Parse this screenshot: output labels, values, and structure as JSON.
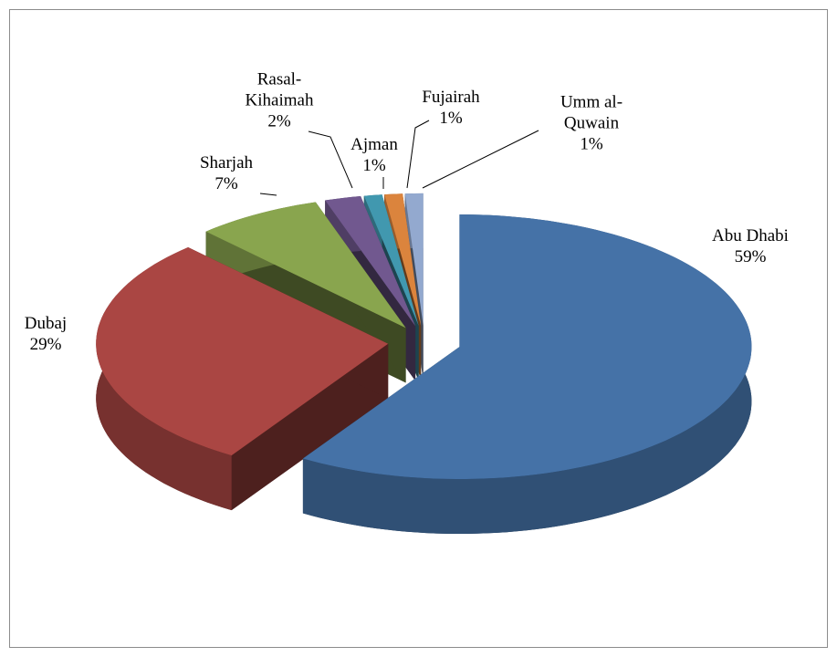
{
  "chart_data": {
    "type": "pie",
    "categories": [
      "Abu Dhabi",
      "Dubaj",
      "Sharjah",
      "Rasal-Kihaimah",
      "Ajman",
      "Fujairah",
      "Umm al-Quwain"
    ],
    "values": [
      59,
      29,
      7,
      2,
      1,
      1,
      1
    ],
    "value_labels": [
      "59%",
      "29%",
      "7%",
      "2%",
      "1%",
      "1%",
      "1%"
    ],
    "colors": [
      "#4572a7",
      "#aa4643",
      "#89a54e",
      "#71588f",
      "#4198af",
      "#db843d",
      "#93a9cf"
    ]
  }
}
